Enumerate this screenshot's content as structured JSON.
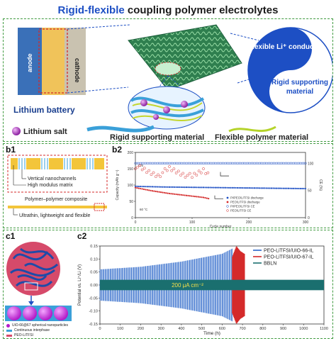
{
  "title": {
    "part1": "Rigid-flexible",
    "part2": "coupling polymer electrolytes"
  },
  "panel_a": {
    "anode": "anode",
    "cathode": "cathode",
    "battery_label": "Lithium battery",
    "flexible_conductor": "Flexible Li⁺ conductor",
    "rigid_material": "Rigid supporting material",
    "legend": {
      "salt": "Lithium salt",
      "rigid": "Rigid supporting material",
      "flexible": "Flexible polymer material"
    }
  },
  "panel_b1": {
    "label": "b1",
    "vertical": "Vertical nanochannels",
    "matrix": "High modulus matrix",
    "composite": "Polymer–polymer composite",
    "ultrathin": "Ultrathin, lightweight and flexible"
  },
  "panel_b2": {
    "label": "b2",
    "ylabel": "Capacity (mAh g⁻¹)",
    "ylabel_right": "CE (%)",
    "xlabel": "Cycle number",
    "ann_c5": "C/5",
    "ann_temp": "60 °C",
    "legend": [
      "PI/PEO/LiTFSI discharge",
      "PEO/LiTFSI discharge",
      "PI/PEO/LiTFSI CE",
      "PEO/LiTFSI CE"
    ]
  },
  "panel_c1": {
    "label": "c1",
    "legend": [
      "UiO-66@67 spherical nanoparticles",
      "Continuous interphase",
      "PEO-LiTFSI"
    ]
  },
  "panel_c2": {
    "label": "c2",
    "ylabel": "Potential vs. Li⁺/Li (V)",
    "xlabel": "Time (h)",
    "annotation": "200 μA cm⁻²",
    "legend": [
      "PEO-LiTFSI/UIO-66-IL",
      "PEO-LiTFSI/UIO-67-IL",
      "BBLN"
    ]
  },
  "colors": {
    "blue": "#1d4fc4",
    "green": "#3f9a3f",
    "red": "#d42a2a",
    "teal": "#1a6f6f"
  },
  "chart_data": [
    {
      "type": "scatter",
      "id": "b2",
      "xlabel": "Cycle number",
      "ylabel": "Capacity (mAh g⁻¹)",
      "ylabel_right": "CE (%)",
      "xlim": [
        0,
        300
      ],
      "ylim": [
        0,
        200
      ],
      "ylim_right": [
        0,
        120
      ],
      "x_ticks": [
        0,
        100,
        200,
        300
      ],
      "y_ticks": [
        0,
        50,
        100,
        150,
        200
      ],
      "y_ticks_right": [
        0,
        50,
        100
      ],
      "series": [
        {
          "name": "PI/PEO/LiTFSI discharge",
          "axis": "left",
          "x": [
            0,
            50,
            100,
            150,
            200,
            250,
            300
          ],
          "values": [
            96,
            94,
            93,
            92,
            91,
            90,
            89
          ]
        },
        {
          "name": "PEO/LiTFSI discharge",
          "axis": "left",
          "x": [
            0,
            30,
            60,
            90,
            120,
            130
          ],
          "values": [
            92,
            82,
            74,
            68,
            62,
            58
          ]
        },
        {
          "name": "PI/PEO/LiTFSI CE",
          "axis": "right",
          "x": [
            0,
            50,
            100,
            150,
            200,
            250,
            300
          ],
          "values": [
            100,
            100,
            100,
            100,
            100,
            100,
            100
          ]
        },
        {
          "name": "PEO/LiTFSI CE",
          "axis": "right",
          "x": [
            0,
            20,
            40,
            60,
            80,
            100,
            120,
            130
          ],
          "values": [
            95,
            85,
            78,
            90,
            82,
            75,
            88,
            80
          ]
        }
      ]
    },
    {
      "type": "line",
      "id": "c2",
      "xlabel": "Time (h)",
      "ylabel": "Potential vs. Li⁺/Li (V)",
      "xlim": [
        0,
        1100
      ],
      "ylim": [
        -0.15,
        0.15
      ],
      "x_ticks": [
        0,
        100,
        200,
        300,
        400,
        500,
        600,
        700,
        800,
        900,
        1000,
        1100
      ],
      "y_ticks": [
        -0.15,
        -0.1,
        -0.05,
        0,
        0.05,
        0.1,
        0.15
      ],
      "series": [
        {
          "name": "PEO-LiTFSI/UIO-66-IL",
          "x": [
            0,
            200,
            400,
            600,
            650
          ],
          "values": [
            0.06,
            0.07,
            0.09,
            0.12,
            0.14
          ]
        },
        {
          "name": "PEO-LiTFSI/UIO-67-IL",
          "x": [
            650,
            670,
            690,
            710
          ],
          "values": [
            0.11,
            0.15,
            0.13,
            0.12
          ]
        },
        {
          "name": "BBLN",
          "x": [
            0,
            200,
            400,
            600,
            800,
            1000,
            1100
          ],
          "values": [
            0.02,
            0.02,
            0.02,
            0.02,
            0.02,
            0.02,
            0.02
          ]
        }
      ]
    }
  ]
}
